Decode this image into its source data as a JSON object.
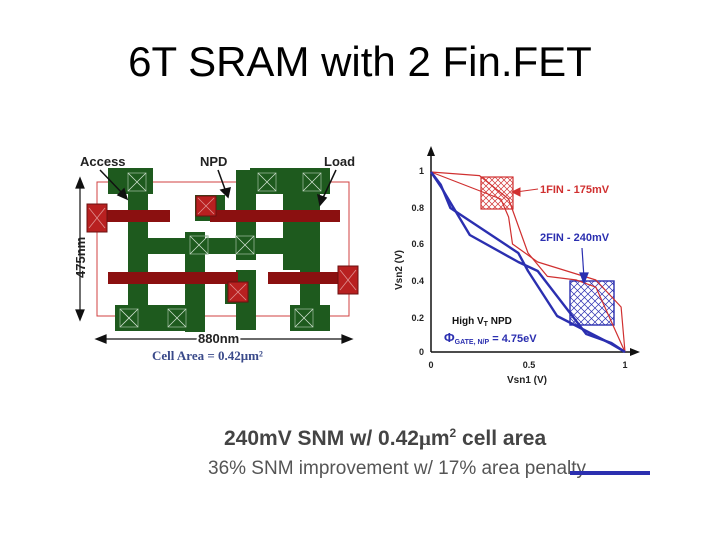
{
  "title": "6T SRAM with 2 Fin.FET",
  "layout": {
    "labels": {
      "access": "Access",
      "npd": "NPD",
      "load": "Load"
    },
    "height_dim": "475nm",
    "width_dim": "880nm",
    "cell_area": "Cell Area = 0.42μm²",
    "colors": {
      "gate": "#8b1010",
      "fin": "#1e5a1e",
      "contact": "#b82020",
      "outline": "#d04040"
    }
  },
  "chart": {
    "xlabel": "Vsn1 (V)",
    "ylabel": "Vsn2 (V)",
    "xticks": [
      "0",
      "0.5",
      "1"
    ],
    "yticks": [
      "0",
      "0.2",
      "0.4",
      "0.6",
      "0.8",
      "1"
    ],
    "label_1fin": "1FIN - 175mV",
    "label_2fin": "2FIN - 240mV",
    "label_npd": "High V",
    "label_npd_sub": "T",
    "label_npd_end": " NPD",
    "label_phi": "Φ",
    "label_phi_sub": "GATE, N/P",
    "label_phi_val": " = 4.75eV",
    "colors": {
      "fin1": "#d03030",
      "fin2": "#2b2fb0"
    }
  },
  "caption": {
    "line1_pre": "240mV SNM w/ 0.42",
    "line1_mu": "μ",
    "line1_unit": "m",
    "line1_sup": "2",
    "line1_post": " cell area",
    "line2": "36% SNM improvement w/ 17% area penalty"
  },
  "chart_data": {
    "type": "line",
    "xlabel": "Vsn1 (V)",
    "ylabel": "Vsn2 (V)",
    "xlim": [
      0,
      1
    ],
    "ylim": [
      0,
      1
    ],
    "series": [
      {
        "name": "1FIN - 175mV",
        "x": [
          0,
          0.25,
          0.4,
          0.5,
          0.6,
          0.75,
          0.85,
          1.0
        ],
        "y": [
          1.0,
          0.98,
          0.85,
          0.55,
          0.42,
          0.4,
          0.36,
          0.0
        ]
      },
      {
        "name": "2FIN - 240mV",
        "x": [
          0,
          0.05,
          0.2,
          0.45,
          0.55,
          0.8,
          0.93,
          1.0
        ],
        "y": [
          1.0,
          0.92,
          0.65,
          0.5,
          0.45,
          0.1,
          0.05,
          0.0
        ]
      }
    ]
  }
}
